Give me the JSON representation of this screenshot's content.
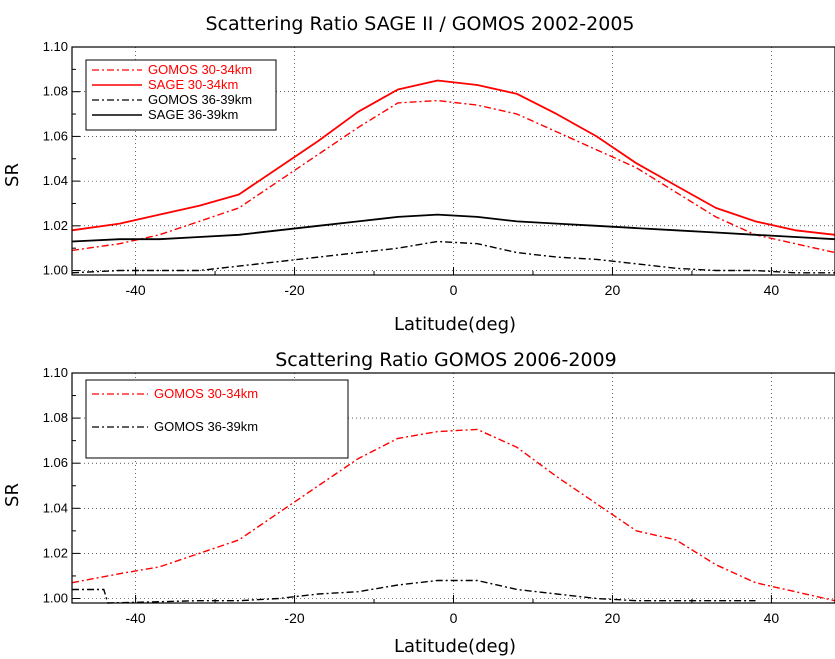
{
  "chart_data": [
    {
      "type": "line",
      "title": "Scattering Ratio SAGE II / GOMOS 2002-2005",
      "xlabel": "Latitude(deg)",
      "ylabel": "SR",
      "xlim": [
        -48,
        48
      ],
      "ylim": [
        0.998,
        1.1
      ],
      "xticks": [
        -40,
        -20,
        0,
        20,
        40
      ],
      "xtick_labels": [
        "-40",
        "-20",
        "0",
        "20",
        "40"
      ],
      "yticks": [
        1.0,
        1.02,
        1.04,
        1.06,
        1.08,
        1.1
      ],
      "ytick_labels": [
        "1.00",
        "1.02",
        "1.04",
        "1.06",
        "1.08",
        "1.10"
      ],
      "legend_position": "top-left",
      "series": [
        {
          "name": "GOMOS 30-34km",
          "color": "#ff0000",
          "dash": "dashdot",
          "x": [
            -48,
            -42,
            -37,
            -32,
            -27,
            -22,
            -17,
            -12,
            -7,
            -2,
            3,
            8,
            13,
            18,
            23,
            28,
            33,
            38,
            43,
            48
          ],
          "y": [
            1.009,
            1.012,
            1.016,
            1.022,
            1.028,
            1.04,
            1.052,
            1.064,
            1.075,
            1.076,
            1.074,
            1.07,
            1.062,
            1.054,
            1.046,
            1.035,
            1.024,
            1.016,
            1.012,
            1.008
          ]
        },
        {
          "name": "SAGE 30-34km",
          "color": "#ff0000",
          "dash": "solid",
          "x": [
            -48,
            -42,
            -37,
            -32,
            -27,
            -22,
            -17,
            -12,
            -7,
            -2,
            3,
            8,
            13,
            18,
            23,
            28,
            33,
            38,
            43,
            48
          ],
          "y": [
            1.018,
            1.021,
            1.025,
            1.029,
            1.034,
            1.046,
            1.058,
            1.071,
            1.081,
            1.085,
            1.083,
            1.079,
            1.07,
            1.06,
            1.048,
            1.038,
            1.028,
            1.022,
            1.018,
            1.016
          ]
        },
        {
          "name": "GOMOS 36-39km",
          "color": "#000000",
          "dash": "dashdot",
          "x": [
            -48,
            -42,
            -37,
            -32,
            -27,
            -22,
            -17,
            -12,
            -7,
            -2,
            3,
            8,
            13,
            18,
            23,
            28,
            33,
            38,
            43,
            48
          ],
          "y": [
            0.999,
            1.0,
            1.0,
            1.0,
            1.002,
            1.004,
            1.006,
            1.008,
            1.01,
            1.013,
            1.012,
            1.008,
            1.006,
            1.005,
            1.003,
            1.001,
            1.0,
            1.0,
            0.999,
            0.999
          ]
        },
        {
          "name": "SAGE 36-39km",
          "color": "#000000",
          "dash": "solid",
          "x": [
            -48,
            -42,
            -37,
            -32,
            -27,
            -22,
            -17,
            -12,
            -7,
            -2,
            3,
            8,
            13,
            18,
            23,
            28,
            33,
            38,
            43,
            48
          ],
          "y": [
            1.013,
            1.014,
            1.014,
            1.015,
            1.016,
            1.018,
            1.02,
            1.022,
            1.024,
            1.025,
            1.024,
            1.022,
            1.021,
            1.02,
            1.019,
            1.018,
            1.017,
            1.016,
            1.015,
            1.014
          ]
        }
      ]
    },
    {
      "type": "line",
      "title": "Scattering Ratio GOMOS 2006-2009",
      "xlabel": "Latitude(deg)",
      "ylabel": "SR",
      "xlim": [
        -48,
        48
      ],
      "ylim": [
        0.998,
        1.1
      ],
      "xticks": [
        -40,
        -20,
        0,
        20,
        40
      ],
      "xtick_labels": [
        "-40",
        "-20",
        "0",
        "20",
        "40"
      ],
      "yticks": [
        1.0,
        1.02,
        1.04,
        1.06,
        1.08,
        1.1
      ],
      "ytick_labels": [
        "1.00",
        "1.02",
        "1.04",
        "1.06",
        "1.08",
        "1.10"
      ],
      "legend_position": "top-left",
      "series": [
        {
          "name": "GOMOS 30-34km",
          "color": "#ff0000",
          "dash": "dashdot",
          "x": [
            -48,
            -42,
            -37,
            -32,
            -27,
            -22,
            -17,
            -12,
            -7,
            -2,
            3,
            8,
            13,
            18,
            23,
            28,
            33,
            38,
            43,
            48
          ],
          "y": [
            1.007,
            1.011,
            1.014,
            1.02,
            1.026,
            1.038,
            1.05,
            1.062,
            1.071,
            1.074,
            1.075,
            1.067,
            1.054,
            1.042,
            1.03,
            1.026,
            1.015,
            1.007,
            1.003,
            0.999
          ]
        },
        {
          "name": "GOMOS 36-39km",
          "color": "#000000",
          "dash": "dashdot",
          "x": [
            -48,
            -44,
            -43.5,
            -32,
            -27,
            -22,
            -17,
            -12,
            -7,
            -2,
            3,
            8,
            13,
            18,
            23,
            28,
            33,
            38
          ],
          "y": [
            1.004,
            1.004,
            0.998,
            0.999,
            0.999,
            1.0,
            1.002,
            1.003,
            1.006,
            1.008,
            1.008,
            1.004,
            1.002,
            1.0,
            0.999,
            0.999,
            0.999,
            0.999
          ]
        }
      ]
    }
  ]
}
